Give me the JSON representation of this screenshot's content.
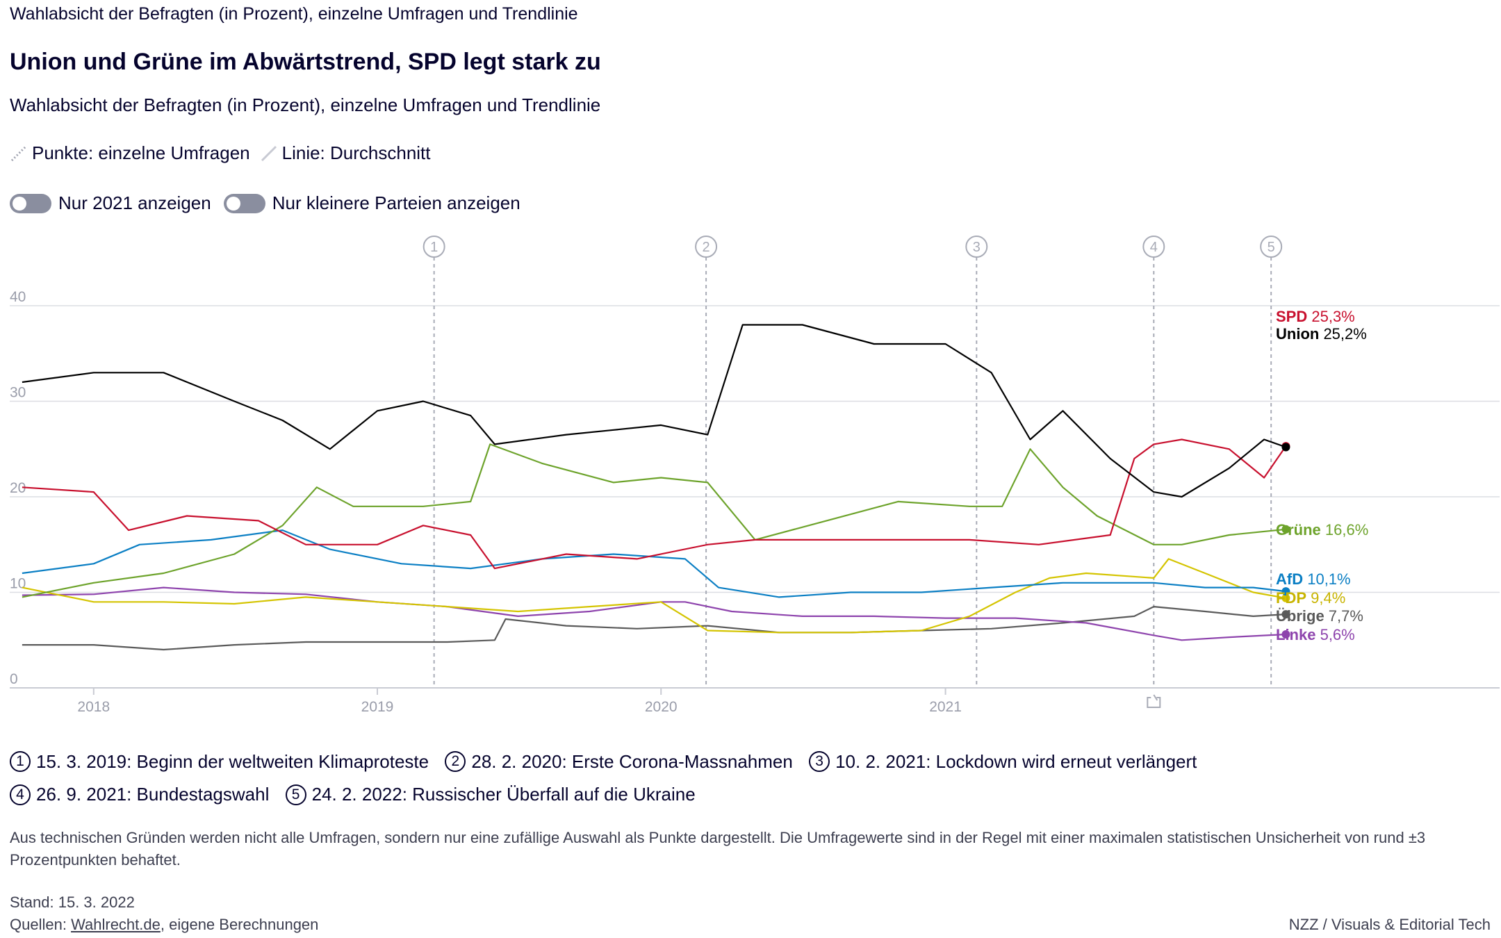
{
  "kicker": "Wahlabsicht der Befragten (in Prozent), einzelne Umfragen und Trendlinie",
  "title": "Union und Grüne im Abwärtstrend, SPD legt stark zu",
  "subtitle": "Wahlabsicht der Befragten (in Prozent), einzelne Umfragen und Trendlinie",
  "legend": {
    "points": "Punkte: einzelne Umfragen",
    "line": "Linie: Durchschnitt"
  },
  "toggles": {
    "only_2021": "Nur 2021 anzeigen",
    "small_parties": "Nur kleinere Parteien anzeigen"
  },
  "events": [
    {
      "num": "1",
      "text": "15. 3. 2019: Beginn der weltweiten Klimaproteste"
    },
    {
      "num": "2",
      "text": "28. 2. 2020: Erste Corona-Massnahmen"
    },
    {
      "num": "3",
      "text": "10. 2. 2021: Lockdown wird erneut verlängert"
    },
    {
      "num": "4",
      "text": "26. 9. 2021: Bundestagswahl"
    },
    {
      "num": "5",
      "text": "24. 2. 2022: Russischer Überfall auf die Ukraine"
    }
  ],
  "note": "Aus technischen Gründen werden nicht alle Umfragen, sondern nur eine zufällige Auswahl als Punkte dargestellt. Die Umfragewerte sind in der Regel mit einer maximalen statistischen Unsicherheit von rund ±3 Prozentpunkten behaftet.",
  "stand": "Stand: 15. 3. 2022",
  "sources": {
    "prefix": "Quellen: ",
    "link": "Wahlrecht.de",
    "suffix": ", eigene Berechnungen"
  },
  "credit": "NZZ / Visuals & Editorial Tech",
  "icons": {
    "election": "ballot-box-icon"
  },
  "chart_data": {
    "type": "line",
    "ylim": [
      0,
      40
    ],
    "yticks": [
      0,
      10,
      20,
      30,
      40
    ],
    "xlim": [
      "2017-09-15",
      "2022-12-15"
    ],
    "xticks": [
      {
        "date": "2018-01-01",
        "label": "2018"
      },
      {
        "date": "2019-01-01",
        "label": "2019"
      },
      {
        "date": "2020-01-01",
        "label": "2020"
      },
      {
        "date": "2021-01-01",
        "label": "2021"
      }
    ],
    "event_lines": [
      {
        "num": "1",
        "date": "2019-03-15"
      },
      {
        "num": "2",
        "date": "2020-02-28"
      },
      {
        "num": "3",
        "date": "2021-02-10"
      },
      {
        "num": "4",
        "date": "2021-09-26"
      },
      {
        "num": "5",
        "date": "2022-02-24"
      }
    ],
    "series": [
      {
        "name": "Übrige",
        "value_label": "7,7%",
        "color": "#5a5a5a",
        "label_color": "#5a5a5a",
        "points": [
          [
            "2017-10-01",
            4.5
          ],
          [
            "2018-01-01",
            4.5
          ],
          [
            "2018-04-01",
            4.0
          ],
          [
            "2018-07-01",
            4.5
          ],
          [
            "2018-10-01",
            4.8
          ],
          [
            "2019-01-01",
            4.8
          ],
          [
            "2019-04-01",
            4.8
          ],
          [
            "2019-06-01",
            5.0
          ],
          [
            "2019-06-15",
            7.2
          ],
          [
            "2019-09-01",
            6.5
          ],
          [
            "2019-12-01",
            6.2
          ],
          [
            "2020-03-01",
            6.5
          ],
          [
            "2020-06-01",
            5.8
          ],
          [
            "2020-09-01",
            5.8
          ],
          [
            "2020-12-01",
            6.0
          ],
          [
            "2021-03-01",
            6.2
          ],
          [
            "2021-06-01",
            6.8
          ],
          [
            "2021-09-01",
            7.5
          ],
          [
            "2021-09-26",
            8.5
          ],
          [
            "2021-12-01",
            8.0
          ],
          [
            "2022-02-01",
            7.5
          ],
          [
            "2022-03-15",
            7.7
          ]
        ]
      },
      {
        "name": "Linke",
        "value_label": "5,6%",
        "color": "#8e44ad",
        "label_color": "#8e44ad",
        "points": [
          [
            "2017-10-01",
            9.7
          ],
          [
            "2018-01-01",
            9.8
          ],
          [
            "2018-04-01",
            10.5
          ],
          [
            "2018-07-01",
            10.0
          ],
          [
            "2018-10-01",
            9.8
          ],
          [
            "2019-01-01",
            9.0
          ],
          [
            "2019-04-01",
            8.5
          ],
          [
            "2019-07-01",
            7.5
          ],
          [
            "2019-10-01",
            8.0
          ],
          [
            "2020-01-01",
            9.0
          ],
          [
            "2020-02-01",
            9.0
          ],
          [
            "2020-04-01",
            8.0
          ],
          [
            "2020-07-01",
            7.5
          ],
          [
            "2020-10-01",
            7.5
          ],
          [
            "2021-01-01",
            7.3
          ],
          [
            "2021-04-01",
            7.3
          ],
          [
            "2021-07-01",
            6.8
          ],
          [
            "2021-09-26",
            5.5
          ],
          [
            "2021-11-01",
            5.0
          ],
          [
            "2022-01-01",
            5.3
          ],
          [
            "2022-03-15",
            5.6
          ]
        ]
      },
      {
        "name": "FDP",
        "value_label": "9,4%",
        "color": "#d4c400",
        "label_color": "#c8b400",
        "points": [
          [
            "2017-10-01",
            10.5
          ],
          [
            "2018-01-01",
            9.0
          ],
          [
            "2018-04-01",
            9.0
          ],
          [
            "2018-07-01",
            8.8
          ],
          [
            "2018-10-01",
            9.5
          ],
          [
            "2019-01-01",
            9.0
          ],
          [
            "2019-04-01",
            8.5
          ],
          [
            "2019-07-01",
            8.0
          ],
          [
            "2019-10-01",
            8.5
          ],
          [
            "2020-01-01",
            9.0
          ],
          [
            "2020-03-01",
            6.0
          ],
          [
            "2020-06-01",
            5.8
          ],
          [
            "2020-09-01",
            5.8
          ],
          [
            "2020-12-01",
            6.0
          ],
          [
            "2021-02-01",
            7.5
          ],
          [
            "2021-04-01",
            10.0
          ],
          [
            "2021-05-15",
            11.5
          ],
          [
            "2021-07-01",
            12.0
          ],
          [
            "2021-09-26",
            11.5
          ],
          [
            "2021-10-15",
            13.5
          ],
          [
            "2021-12-01",
            12.0
          ],
          [
            "2022-02-01",
            10.0
          ],
          [
            "2022-03-15",
            9.4
          ]
        ]
      },
      {
        "name": "AfD",
        "value_label": "10,1%",
        "color": "#0b7fc4",
        "label_color": "#0b7fc4",
        "points": [
          [
            "2017-10-01",
            12.0
          ],
          [
            "2018-01-01",
            13.0
          ],
          [
            "2018-03-01",
            15.0
          ],
          [
            "2018-06-01",
            15.5
          ],
          [
            "2018-09-01",
            16.5
          ],
          [
            "2018-11-01",
            14.5
          ],
          [
            "2019-02-01",
            13.0
          ],
          [
            "2019-05-01",
            12.5
          ],
          [
            "2019-08-01",
            13.5
          ],
          [
            "2019-11-01",
            14.0
          ],
          [
            "2020-02-01",
            13.5
          ],
          [
            "2020-03-15",
            10.5
          ],
          [
            "2020-06-01",
            9.5
          ],
          [
            "2020-09-01",
            10.0
          ],
          [
            "2020-12-01",
            10.0
          ],
          [
            "2021-03-01",
            10.5
          ],
          [
            "2021-06-01",
            11.0
          ],
          [
            "2021-09-26",
            11.0
          ],
          [
            "2021-12-01",
            10.5
          ],
          [
            "2022-02-01",
            10.5
          ],
          [
            "2022-03-15",
            10.1
          ]
        ]
      },
      {
        "name": "Grüne",
        "value_label": "16,6%",
        "color": "#6da32b",
        "label_color": "#6da32b",
        "points": [
          [
            "2017-10-01",
            9.5
          ],
          [
            "2018-01-01",
            11.0
          ],
          [
            "2018-04-01",
            12.0
          ],
          [
            "2018-07-01",
            14.0
          ],
          [
            "2018-09-01",
            17.0
          ],
          [
            "2018-10-15",
            21.0
          ],
          [
            "2018-12-01",
            19.0
          ],
          [
            "2019-03-01",
            19.0
          ],
          [
            "2019-05-01",
            19.5
          ],
          [
            "2019-05-26",
            25.5
          ],
          [
            "2019-08-01",
            23.5
          ],
          [
            "2019-11-01",
            21.5
          ],
          [
            "2020-01-01",
            22.0
          ],
          [
            "2020-03-01",
            21.5
          ],
          [
            "2020-05-01",
            15.5
          ],
          [
            "2020-08-01",
            17.5
          ],
          [
            "2020-11-01",
            19.5
          ],
          [
            "2021-02-01",
            19.0
          ],
          [
            "2021-03-15",
            19.0
          ],
          [
            "2021-04-20",
            25.0
          ],
          [
            "2021-06-01",
            21.0
          ],
          [
            "2021-07-15",
            18.0
          ],
          [
            "2021-09-26",
            15.0
          ],
          [
            "2021-11-01",
            15.0
          ],
          [
            "2022-01-01",
            16.0
          ],
          [
            "2022-03-15",
            16.6
          ]
        ]
      },
      {
        "name": "SPD",
        "value_label": "25,3%",
        "color": "#c8102e",
        "label_color": "#c8102e",
        "points": [
          [
            "2017-10-01",
            21.0
          ],
          [
            "2018-01-01",
            20.5
          ],
          [
            "2018-02-15",
            16.5
          ],
          [
            "2018-05-01",
            18.0
          ],
          [
            "2018-08-01",
            17.5
          ],
          [
            "2018-10-01",
            15.0
          ],
          [
            "2019-01-01",
            15.0
          ],
          [
            "2019-03-01",
            17.0
          ],
          [
            "2019-05-01",
            16.0
          ],
          [
            "2019-06-01",
            12.5
          ],
          [
            "2019-09-01",
            14.0
          ],
          [
            "2019-12-01",
            13.5
          ],
          [
            "2020-03-01",
            15.0
          ],
          [
            "2020-05-01",
            15.5
          ],
          [
            "2020-08-01",
            15.5
          ],
          [
            "2020-11-01",
            15.5
          ],
          [
            "2021-02-01",
            15.5
          ],
          [
            "2021-05-01",
            15.0
          ],
          [
            "2021-08-01",
            16.0
          ],
          [
            "2021-09-01",
            24.0
          ],
          [
            "2021-09-26",
            25.5
          ],
          [
            "2021-11-01",
            26.0
          ],
          [
            "2022-01-01",
            25.0
          ],
          [
            "2022-02-15",
            22.0
          ],
          [
            "2022-03-15",
            25.3
          ]
        ]
      },
      {
        "name": "Union",
        "value_label": "25,2%",
        "color": "#000000",
        "label_color": "#000000",
        "points": [
          [
            "2017-10-01",
            32.0
          ],
          [
            "2018-01-01",
            33.0
          ],
          [
            "2018-04-01",
            33.0
          ],
          [
            "2018-07-01",
            30.0
          ],
          [
            "2018-09-01",
            28.0
          ],
          [
            "2018-11-01",
            25.0
          ],
          [
            "2019-01-01",
            29.0
          ],
          [
            "2019-03-01",
            30.0
          ],
          [
            "2019-05-01",
            28.5
          ],
          [
            "2019-06-01",
            25.5
          ],
          [
            "2019-09-01",
            26.5
          ],
          [
            "2019-11-01",
            27.0
          ],
          [
            "2020-01-01",
            27.5
          ],
          [
            "2020-03-01",
            26.5
          ],
          [
            "2020-04-15",
            38.0
          ],
          [
            "2020-07-01",
            38.0
          ],
          [
            "2020-10-01",
            36.0
          ],
          [
            "2021-01-01",
            36.0
          ],
          [
            "2021-03-01",
            33.0
          ],
          [
            "2021-04-20",
            26.0
          ],
          [
            "2021-06-01",
            29.0
          ],
          [
            "2021-08-01",
            24.0
          ],
          [
            "2021-09-26",
            20.5
          ],
          [
            "2021-11-01",
            20.0
          ],
          [
            "2022-01-01",
            23.0
          ],
          [
            "2022-02-15",
            26.0
          ],
          [
            "2022-03-15",
            25.2
          ]
        ]
      }
    ]
  }
}
